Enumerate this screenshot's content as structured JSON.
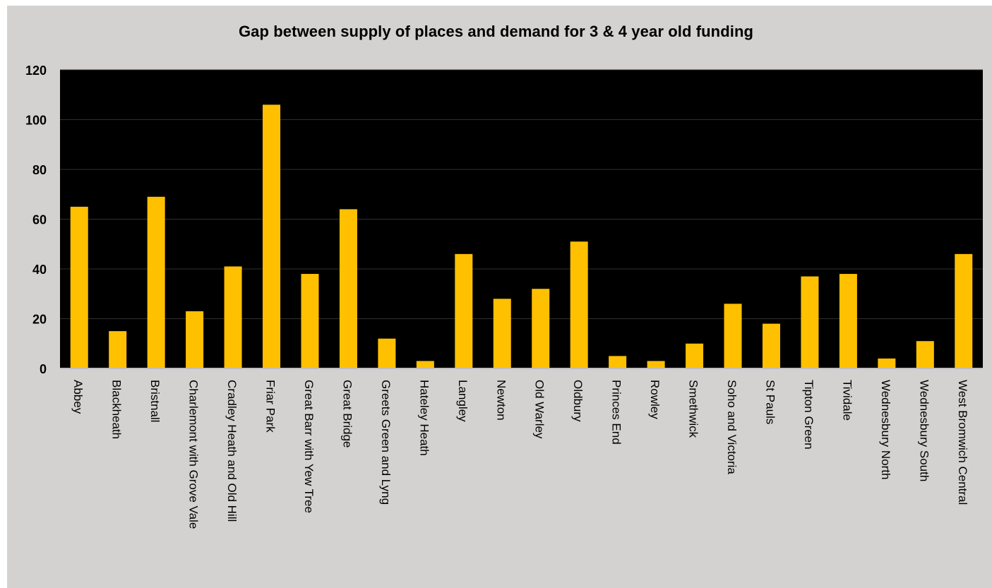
{
  "chart_data": {
    "type": "bar",
    "title": "Gap between supply of places and demand for 3 & 4 year old funding",
    "xlabel": "",
    "ylabel": "",
    "ylim": [
      0,
      120
    ],
    "yticks": [
      0,
      20,
      40,
      60,
      80,
      100,
      120
    ],
    "grid": true,
    "legend": "none",
    "categories": [
      "Abbey",
      "Blackheath",
      "Bristnall",
      "Charlemont with Grove Vale",
      "Cradley Heath and Old Hill",
      "Friar Park",
      "Great Barr with Yew Tree",
      "Great Bridge",
      "Greets Green and Lyng",
      "Hateley Heath",
      "Langley",
      "Newton",
      "Old Warley",
      "Oldbury",
      "Princes End",
      "Rowley",
      "Smethwick",
      "Soho and Victoria",
      "St Pauls",
      "Tipton Green",
      "Tividale",
      "Wednesbury North",
      "Wednesbury South",
      "West Bromwich Central"
    ],
    "values": [
      65,
      15,
      69,
      23,
      41,
      106,
      38,
      64,
      12,
      3,
      46,
      28,
      32,
      51,
      5,
      3,
      10,
      26,
      18,
      37,
      38,
      4,
      11,
      46
    ],
    "colors": {
      "bar": "#ffc000",
      "plot_background": "#000000",
      "chart_background": "#d4d1d1",
      "gridline": "#303030"
    }
  }
}
